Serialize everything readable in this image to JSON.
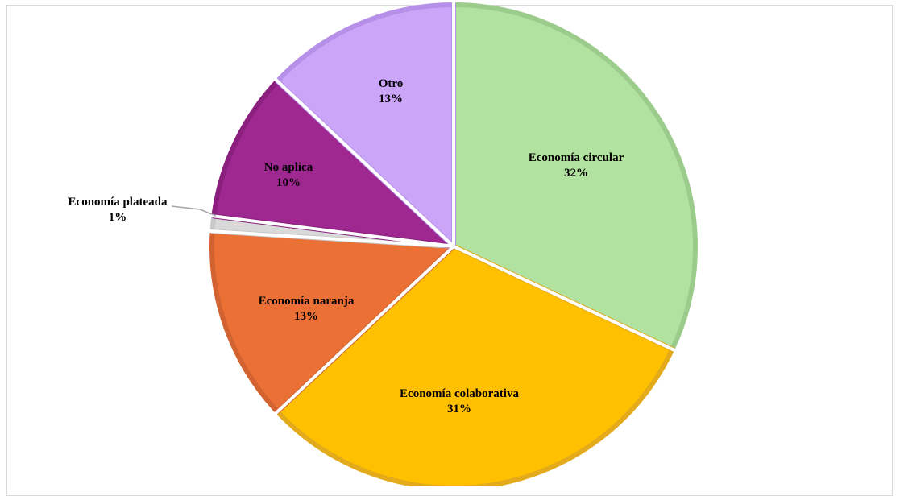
{
  "chart_data": {
    "type": "pie",
    "title": "",
    "slices": [
      {
        "label": "Economía circular",
        "value": 32,
        "value_label": "32%",
        "color": "#b2e2a0",
        "border": "#9ccc8c"
      },
      {
        "label": "Economía colaborativa",
        "value": 31,
        "value_label": "31%",
        "color": "#ffc000",
        "border": "#e3ab1b"
      },
      {
        "label": "Economía naranja",
        "value": 13,
        "value_label": "13%",
        "color": "#ea7035",
        "border": "#d2622f"
      },
      {
        "label": "Economía plateada",
        "value": 1,
        "value_label": "1%",
        "color": "#d9d9d9",
        "border": "#c8c8c8"
      },
      {
        "label": "No aplica",
        "value": 10,
        "value_label": "10%",
        "color": "#9e2790",
        "border": "#8a1f7e"
      },
      {
        "label": "Otro",
        "value": 13,
        "value_label": "13%",
        "color": "#cba6f8",
        "border": "#b58fe8"
      }
    ],
    "start": "top, clockwise",
    "legend": "none"
  }
}
